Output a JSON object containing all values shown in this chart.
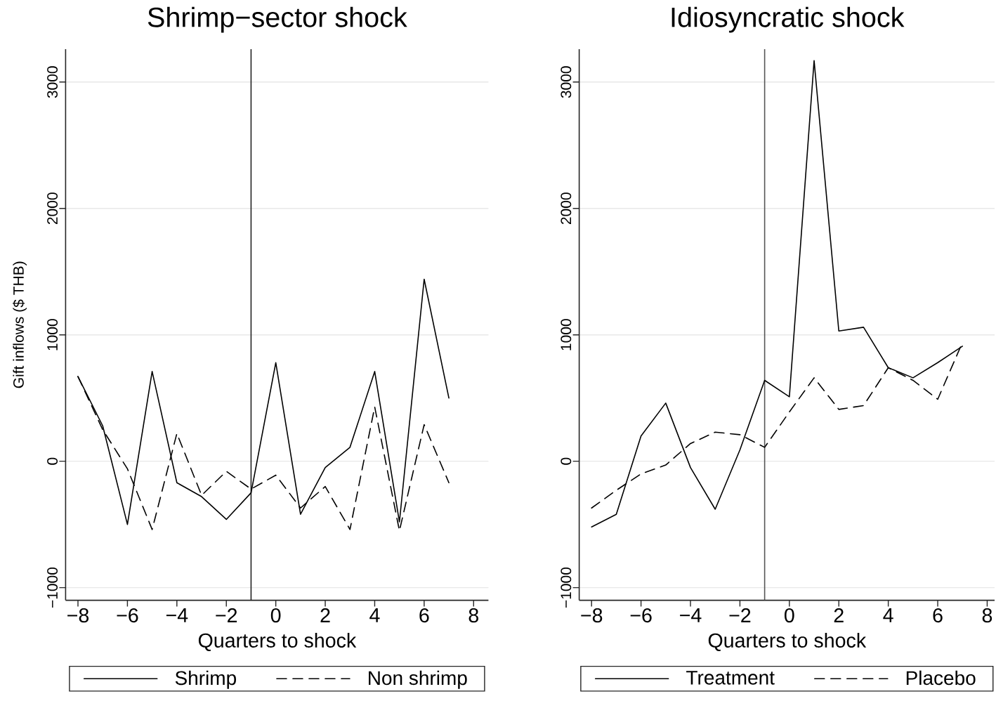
{
  "chart_data": [
    {
      "type": "line",
      "title": "Shrimp−sector shock",
      "xlabel": "Quarters to shock",
      "ylabel": "Gift inflows ($ THB)",
      "x": [
        -8,
        -7,
        -6,
        -5,
        -4,
        -3,
        -2,
        -1,
        0,
        1,
        2,
        3,
        4,
        5,
        6,
        7
      ],
      "series": [
        {
          "name": "Shrimp",
          "color": "#000000",
          "line_style": "solid",
          "values": [
            670,
            280,
            -500,
            710,
            -170,
            -280,
            -460,
            -250,
            780,
            -420,
            -50,
            110,
            710,
            -480,
            1440,
            500
          ]
        },
        {
          "name": "Non shrimp",
          "color": "#000000",
          "line_style": "dashed",
          "values": [
            670,
            250,
            -60,
            -540,
            220,
            -270,
            -80,
            -220,
            -110,
            -370,
            -200,
            -540,
            430,
            -550,
            290,
            -170
          ]
        }
      ],
      "xlim": [
        -8.5,
        8.6
      ],
      "ylim": [
        -1100,
        3260
      ],
      "xticks": [
        {
          "value": -8,
          "label": "−8"
        },
        {
          "value": -6,
          "label": "−6"
        },
        {
          "value": -4,
          "label": "−4"
        },
        {
          "value": -2,
          "label": "−2"
        },
        0,
        2,
        4,
        6,
        8
      ],
      "yticks": [
        {
          "value": -1000,
          "label": "−1000"
        },
        0,
        1000,
        2000,
        3000
      ],
      "grid": "y",
      "legend": "bottom",
      "marker": "none",
      "ref_lines": [
        {
          "axis": "x",
          "value": -1,
          "color": "#222222"
        }
      ]
    },
    {
      "type": "line",
      "title": "Idiosyncratic shock",
      "xlabel": "Quarters to shock",
      "x": [
        -8,
        -7,
        -6,
        -5,
        -4,
        -3,
        -2,
        -1,
        0,
        1,
        2,
        3,
        4,
        5,
        6,
        7
      ],
      "series": [
        {
          "name": "Treatment",
          "color": "#000000",
          "line_style": "solid",
          "values": [
            -520,
            -420,
            200,
            460,
            -50,
            -380,
            90,
            640,
            510,
            3170,
            1030,
            1060,
            740,
            660,
            780,
            910
          ]
        },
        {
          "name": "Placebo",
          "color": "#000000",
          "line_style": "dashed",
          "values": [
            -370,
            -230,
            -100,
            -30,
            140,
            230,
            210,
            110,
            390,
            660,
            410,
            440,
            740,
            640,
            490,
            940
          ]
        }
      ],
      "xlim": [
        -8.5,
        8.3
      ],
      "ylim": [
        -1100,
        3260
      ],
      "xticks": [
        {
          "value": -8,
          "label": "−8"
        },
        {
          "value": -6,
          "label": "−6"
        },
        {
          "value": -4,
          "label": "−4"
        },
        {
          "value": -2,
          "label": "−2"
        },
        0,
        2,
        4,
        6,
        8
      ],
      "yticks": [
        {
          "value": -1000,
          "label": "−1000"
        },
        0,
        1000,
        2000,
        3000
      ],
      "grid": "y",
      "legend": "bottom",
      "marker": "none",
      "ref_lines": [
        {
          "axis": "x",
          "value": -1,
          "color": "#555555"
        }
      ]
    }
  ]
}
